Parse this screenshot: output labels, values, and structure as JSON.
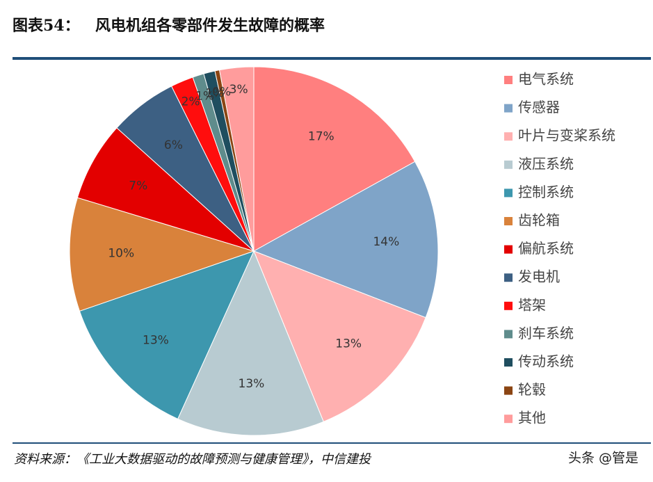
{
  "header": {
    "label": "图表54：",
    "title": "风电机组各零部件发生故障的概率"
  },
  "chart_data": {
    "type": "pie",
    "categories": [
      "电气系统",
      "传感器",
      "叶片与变桨系统",
      "液压系统",
      "控制系统",
      "齿轮箱",
      "偏航系统",
      "发电机",
      "塔架",
      "刹车系统",
      "传动系统",
      "轮毂",
      "其他"
    ],
    "values": [
      17,
      14,
      13,
      13,
      13,
      10,
      7,
      6,
      2,
      1,
      1,
      0.4,
      3
    ],
    "value_labels": [
      "17%",
      "14%",
      "13%",
      "13%",
      "13%",
      "10%",
      "7%",
      "6%",
      "2%",
      "1%",
      "1%",
      "0%",
      "3%"
    ],
    "colors": [
      "#ff7f7f",
      "#7fa4c8",
      "#ffb0b0",
      "#b8cbd1",
      "#3d97ae",
      "#d9823b",
      "#e30000",
      "#3d6083",
      "#ff0d0d",
      "#5f8c8c",
      "#1f4e5f",
      "#8b4513",
      "#ff9c9c"
    ],
    "legend": "right"
  },
  "footer": {
    "source": "资料来源：《工业大数据驱动的故障预测与健康管理》，中信建投",
    "watermark": "头条 @管是"
  }
}
